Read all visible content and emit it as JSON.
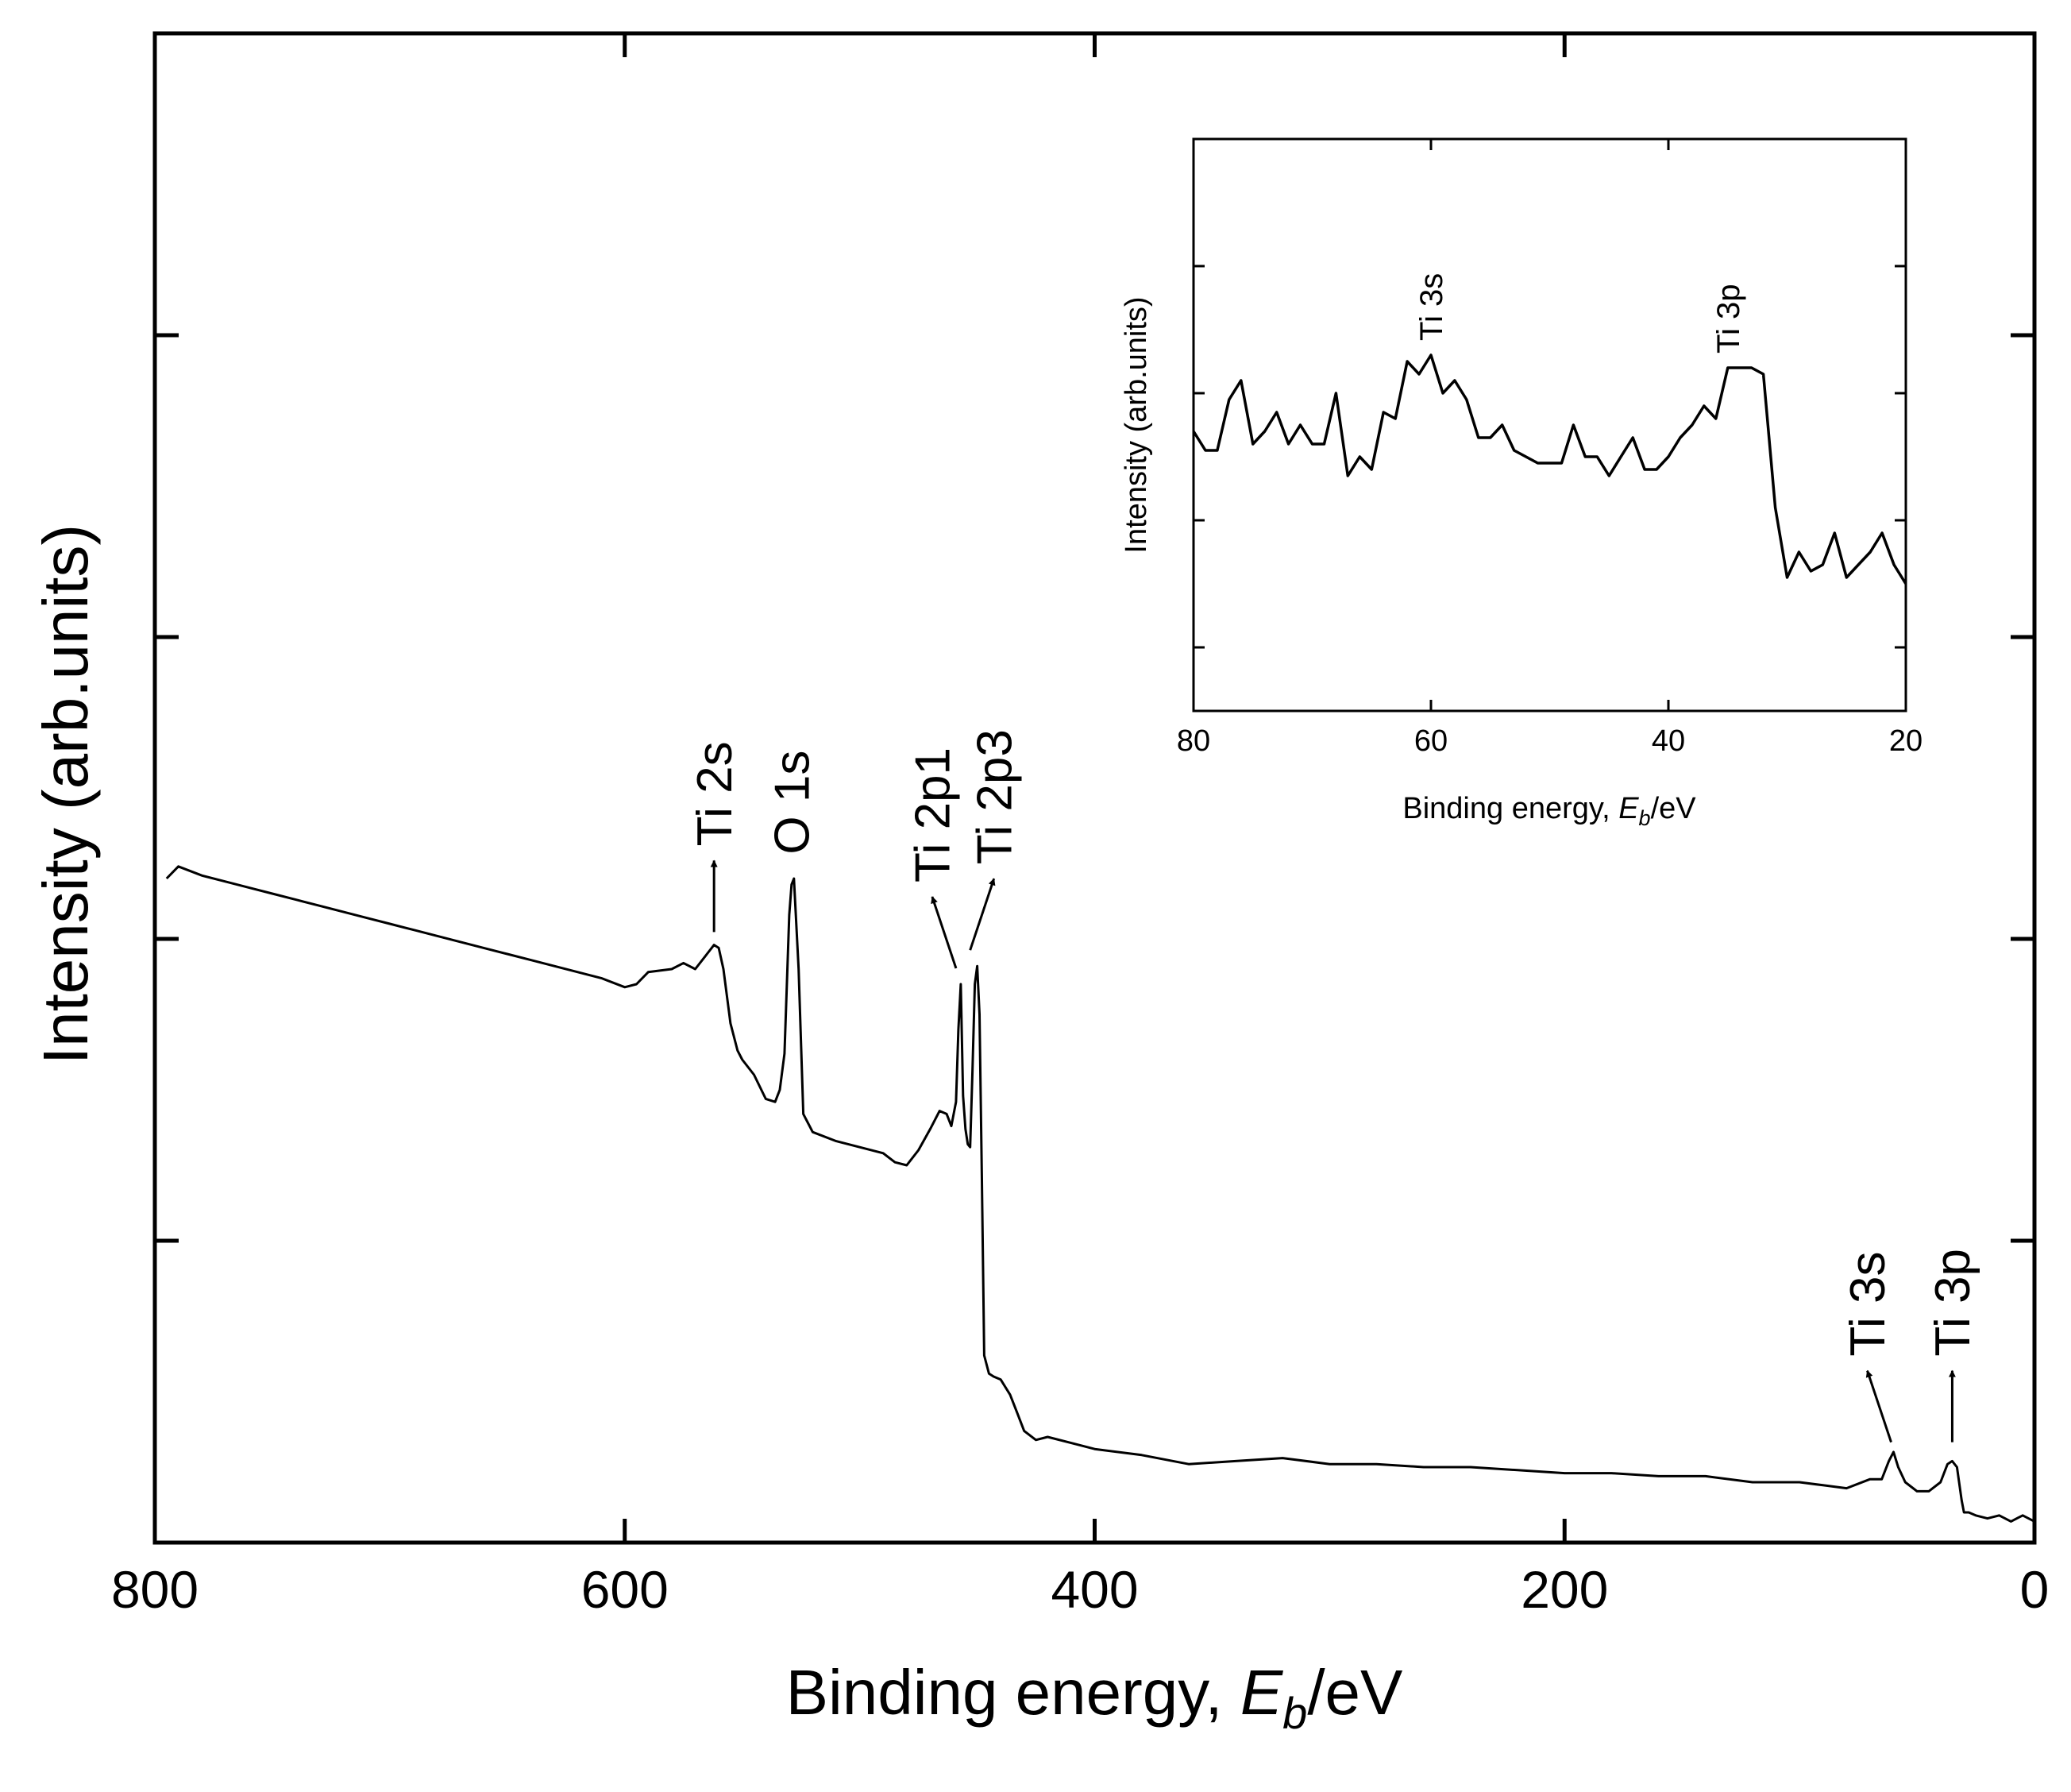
{
  "chart_data": [
    {
      "type": "line",
      "name": "survey",
      "title": "",
      "xlabel_prefix": "Binding energy, ",
      "xlabel_var": "E",
      "xlabel_sub": "b",
      "xlabel_suffix": "/eV",
      "ylabel": "Intensity (arb.units)",
      "xlim": [
        800,
        0
      ],
      "ylim": [
        0,
        5
      ],
      "x_ticks": [
        800,
        600,
        400,
        200,
        0
      ],
      "x_tick_labels": [
        "800",
        "600",
        "400",
        "200",
        "0"
      ],
      "y_ticks": [
        1,
        2,
        3,
        4
      ],
      "y_tick_labels_shown": false,
      "series": [
        {
          "name": "XPS survey spectrum",
          "x": [
            795,
            790,
            780,
            770,
            760,
            750,
            740,
            730,
            720,
            710,
            700,
            690,
            680,
            670,
            660,
            650,
            640,
            630,
            620,
            610,
            600,
            595,
            590,
            580,
            575,
            570,
            565,
            562,
            560,
            558,
            555,
            552,
            550,
            545,
            540,
            536,
            534,
            532,
            530,
            529,
            528,
            526,
            524,
            520,
            510,
            500,
            490,
            485,
            480,
            475,
            470,
            466,
            463,
            461,
            459,
            458,
            457,
            456,
            455,
            454,
            453,
            452,
            451,
            450,
            449,
            448,
            447,
            445,
            443,
            440,
            436,
            433,
            430,
            425,
            420,
            410,
            400,
            380,
            360,
            340,
            320,
            300,
            280,
            260,
            240,
            220,
            200,
            180,
            160,
            140,
            120,
            110,
            100,
            90,
            80,
            70,
            65,
            62,
            60,
            58,
            55,
            50,
            45,
            40,
            37,
            35,
            33,
            31,
            30,
            28,
            25,
            20,
            15,
            10,
            5,
            0
          ],
          "y": [
            2.2,
            2.24,
            2.21,
            2.19,
            2.17,
            2.15,
            2.13,
            2.11,
            2.09,
            2.07,
            2.05,
            2.03,
            2.01,
            1.99,
            1.97,
            1.95,
            1.93,
            1.91,
            1.89,
            1.87,
            1.84,
            1.85,
            1.89,
            1.9,
            1.92,
            1.9,
            1.95,
            1.98,
            1.97,
            1.9,
            1.72,
            1.63,
            1.6,
            1.55,
            1.47,
            1.46,
            1.5,
            1.62,
            2.08,
            2.18,
            2.2,
            1.9,
            1.42,
            1.36,
            1.33,
            1.31,
            1.29,
            1.26,
            1.25,
            1.3,
            1.37,
            1.43,
            1.42,
            1.38,
            1.46,
            1.7,
            1.85,
            1.48,
            1.37,
            1.32,
            1.31,
            1.56,
            1.85,
            1.91,
            1.75,
            1.2,
            0.62,
            0.56,
            0.55,
            0.54,
            0.49,
            0.43,
            0.37,
            0.34,
            0.35,
            0.33,
            0.31,
            0.29,
            0.26,
            0.27,
            0.28,
            0.26,
            0.26,
            0.25,
            0.25,
            0.24,
            0.23,
            0.23,
            0.22,
            0.22,
            0.2,
            0.2,
            0.2,
            0.19,
            0.18,
            0.21,
            0.21,
            0.27,
            0.3,
            0.25,
            0.2,
            0.17,
            0.17,
            0.2,
            0.26,
            0.27,
            0.25,
            0.14,
            0.1,
            0.1,
            0.09,
            0.08,
            0.09,
            0.07,
            0.09,
            0.07
          ]
        }
      ],
      "annotations": [
        {
          "text": "Ti 2s",
          "x": 562,
          "y": 1.97,
          "arrow": "up"
        },
        {
          "text": "O 1s",
          "x": 529,
          "y": 2.18,
          "arrow": "none"
        },
        {
          "text": "Ti 2p1",
          "x": 459,
          "y": 1.85,
          "arrow": "up-left"
        },
        {
          "text": "Ti 2p3",
          "x": 453,
          "y": 1.91,
          "arrow": "up-right"
        },
        {
          "text": "Ti 3s",
          "x": 61,
          "y": 0.28,
          "arrow": "up-left"
        },
        {
          "text": "Ti 3p",
          "x": 35,
          "y": 0.28,
          "arrow": "up"
        }
      ]
    },
    {
      "type": "line",
      "name": "inset",
      "title": "",
      "xlabel_prefix": "Binding energy, ",
      "xlabel_var": "E",
      "xlabel_sub": "b",
      "xlabel_suffix": "/eV",
      "ylabel": "Intensity (arb.units)",
      "xlim": [
        80,
        20
      ],
      "ylim": [
        0,
        9
      ],
      "x_ticks": [
        80,
        60,
        40,
        20
      ],
      "x_tick_labels": [
        "80",
        "60",
        "40",
        "20"
      ],
      "y_ticks": [
        1,
        3,
        5,
        7,
        9
      ],
      "y_tick_labels_shown": false,
      "series": [
        {
          "name": "Ti 3s / Ti 3p region",
          "x": [
            80,
            79,
            78,
            77,
            76,
            75,
            74,
            73,
            72,
            71,
            70,
            69,
            68,
            67,
            66,
            65,
            64,
            63,
            62,
            61,
            60,
            59,
            58,
            57,
            56,
            55,
            54,
            53,
            52,
            51,
            50,
            49,
            48,
            47,
            46,
            45,
            44,
            43,
            42,
            41,
            40,
            39,
            38,
            37,
            36,
            35,
            34,
            33,
            32,
            31,
            30,
            29,
            28,
            27,
            26,
            25,
            24,
            23,
            22,
            21,
            20
          ],
          "y": [
            4.4,
            4.1,
            4.1,
            4.9,
            5.2,
            4.2,
            4.4,
            4.7,
            4.2,
            4.5,
            4.2,
            4.2,
            5.0,
            3.7,
            4.0,
            3.8,
            4.7,
            4.6,
            5.5,
            5.3,
            5.6,
            5.0,
            5.2,
            4.9,
            4.3,
            4.3,
            4.5,
            4.1,
            4.0,
            3.9,
            3.9,
            3.9,
            4.5,
            4.0,
            4.0,
            3.7,
            4.0,
            4.3,
            3.8,
            3.8,
            4.0,
            4.3,
            4.5,
            4.8,
            4.6,
            5.4,
            5.4,
            5.4,
            5.3,
            3.2,
            2.1,
            2.5,
            2.2,
            2.3,
            2.8,
            2.1,
            2.3,
            2.5,
            2.8,
            2.3,
            2.0
          ]
        }
      ],
      "annotations": [
        {
          "text": "Ti 3s",
          "x": 60,
          "y": 5.6,
          "arrow": "none"
        },
        {
          "text": "Ti 3p",
          "x": 35,
          "y": 5.4,
          "arrow": "none"
        }
      ]
    }
  ]
}
